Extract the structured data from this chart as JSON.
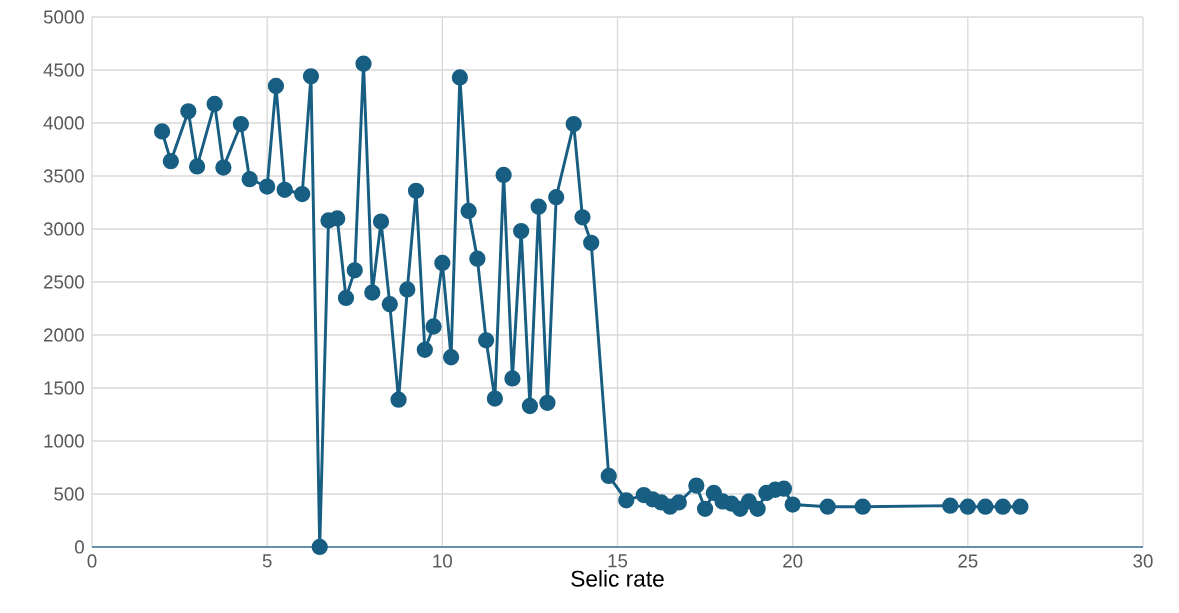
{
  "chart_data": {
    "type": "line",
    "xlabel": "Selic rate",
    "x": [
      2,
      2.25,
      2.75,
      3,
      3.5,
      3.75,
      4.25,
      4.5,
      5,
      5.25,
      5.5,
      6,
      6.25,
      6.5,
      6.75,
      7,
      7.25,
      7.5,
      7.75,
      8,
      8.25,
      8.5,
      8.75,
      9,
      9.25,
      9.5,
      9.75,
      10,
      10.25,
      10.5,
      10.75,
      11,
      11.25,
      11.5,
      11.75,
      12,
      12.25,
      12.5,
      12.75,
      13,
      13.25,
      13.75,
      14,
      14.25,
      14.75,
      15.25,
      15.75,
      16,
      16.25,
      16.5,
      16.75,
      17.25,
      17.5,
      17.75,
      18,
      18.25,
      18.5,
      18.75,
      19,
      19.25,
      19.5,
      19.75,
      20,
      21,
      22,
      24.5,
      25,
      25.5,
      26,
      26.5
    ],
    "series": [
      {
        "color": "#175e82",
        "values": [
          3920,
          3640,
          4110,
          3590,
          4180,
          3580,
          3990,
          3470,
          3400,
          4350,
          3370,
          3330,
          4440,
          0,
          3080,
          3100,
          2350,
          2610,
          4560,
          2400,
          3070,
          2290,
          1390,
          2430,
          3360,
          1860,
          2080,
          2680,
          1790,
          4430,
          3170,
          2720,
          1950,
          1400,
          3510,
          1590,
          2980,
          1330,
          3210,
          1360,
          3300,
          3990,
          3110,
          2870,
          670,
          440,
          490,
          450,
          420,
          380,
          420,
          580,
          360,
          510,
          430,
          410,
          360,
          430,
          360,
          510,
          540,
          550,
          400,
          380,
          380,
          390,
          380,
          380,
          380,
          380
        ]
      }
    ],
    "xlim": [
      0,
      30
    ],
    "xticks": [
      0,
      5,
      10,
      15,
      20,
      25,
      30
    ],
    "ylim": [
      0,
      5000
    ],
    "yticks": [
      0,
      500,
      1000,
      1500,
      2000,
      2500,
      3000,
      3500,
      4000,
      4500,
      5000
    ],
    "grid": true,
    "marker": "circle",
    "line_style": "solid"
  }
}
